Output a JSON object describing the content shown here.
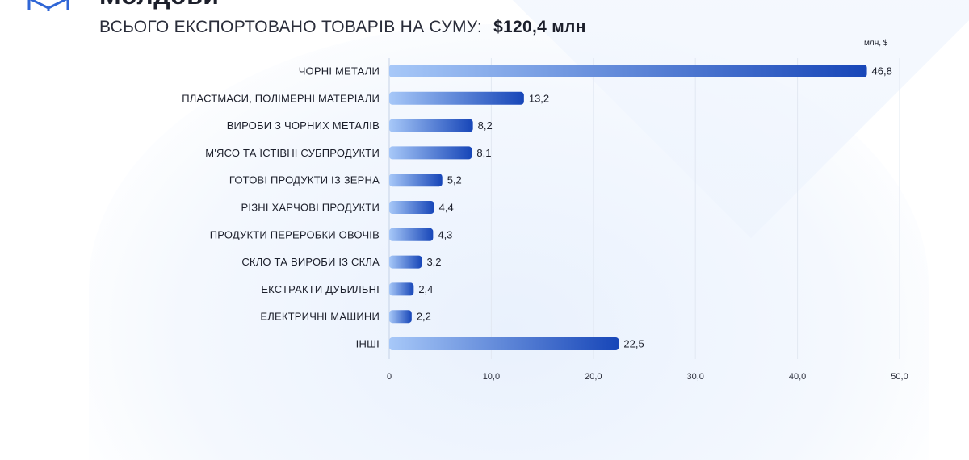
{
  "header": {
    "title_fragment": "Молдови",
    "subtitle": "ВСЬОГО ЕКСПОРТОВАНО ТОВАРІВ НА СУМУ:",
    "total": "$120,4 млн"
  },
  "colors": {
    "bar_start": "#a7c8f8",
    "bar_end": "#1746b8",
    "grid": "#e2e8f2",
    "baseline": "#c5d2e6"
  },
  "icons": {
    "logo": "box-logo-icon"
  },
  "chart_data": {
    "type": "bar",
    "orientation": "horizontal",
    "unit_label": "млн, $",
    "categories": [
      "ЧОРНІ МЕТАЛИ",
      "ПЛАСТМАСИ, ПОЛІМЕРНІ МАТЕРІАЛИ",
      "ВИРОБИ З ЧОРНИХ МЕТАЛІВ",
      "М'ЯСО ТА ЇСТІВНІ СУБПРОДУКТИ",
      "ГОТОВІ ПРОДУКТИ ІЗ ЗЕРНА",
      "РІЗНІ ХАРЧОВІ ПРОДУКТИ",
      "ПРОДУКТИ ПЕРЕРОБКИ ОВОЧІВ",
      "СКЛО ТА ВИРОБИ ІЗ СКЛА",
      "ЕКСТРАКТИ ДУБИЛЬНІ",
      "ЕЛЕКТРИЧНІ МАШИНИ",
      "ІНШІ"
    ],
    "values": [
      46.8,
      13.2,
      8.2,
      8.1,
      5.2,
      4.4,
      4.3,
      3.2,
      2.4,
      2.2,
      22.5
    ],
    "value_labels": [
      "46,8",
      "13,2",
      "8,2",
      "8,1",
      "5,2",
      "4,4",
      "4,3",
      "3,2",
      "2,4",
      "2,2",
      "22,5"
    ],
    "xlim": [
      0,
      50
    ],
    "x_ticks": [
      0,
      10,
      20,
      30,
      40,
      50
    ],
    "x_tick_labels": [
      "0",
      "10,0",
      "20,0",
      "30,0",
      "40,0",
      "50,0"
    ],
    "grid": true,
    "legend": "none"
  }
}
